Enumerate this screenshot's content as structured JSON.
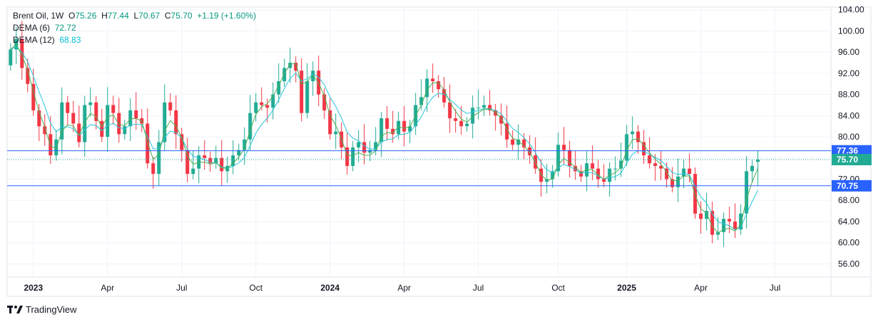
{
  "legend": {
    "symbol": "Brent Oil, 1W",
    "o_label": "O",
    "o": "75.26",
    "h_label": "H",
    "h": "77.44",
    "l_label": "L",
    "l": "70.67",
    "c_label": "C",
    "c": "75.70",
    "change": "+1.19 (+1.60%)",
    "dema6_label": "DEMA (6)",
    "dema6": "72.72",
    "dema12_label": "DEMA (12)",
    "dema12": "68.83"
  },
  "brand": {
    "name": "TradingView"
  },
  "colors": {
    "up": "#22ab94",
    "down": "#f23645",
    "dema6": "#4caf50",
    "dema12": "#26c6da",
    "hline": "#2962ff",
    "axisText": "#131722",
    "grid": "#f0f3fa"
  },
  "chart_data": {
    "type": "candlestick",
    "interval": "1W",
    "y_ticks": [
      "56.00",
      "60.00",
      "64.00",
      "68.00",
      "72.00",
      "76.00",
      "80.00",
      "84.00",
      "88.00",
      "92.00",
      "96.00",
      "100.00",
      "104.00"
    ],
    "y_range": [
      53.5,
      104.5
    ],
    "x_ticks": [
      {
        "label": "2023",
        "week": 4,
        "bold": true
      },
      {
        "label": "Apr",
        "week": 17,
        "bold": false
      },
      {
        "label": "Jul",
        "week": 30,
        "bold": false
      },
      {
        "label": "Oct",
        "week": 43,
        "bold": false
      },
      {
        "label": "2024",
        "week": 56,
        "bold": true
      },
      {
        "label": "Apr",
        "week": 69,
        "bold": false
      },
      {
        "label": "Jul",
        "week": 82,
        "bold": false
      },
      {
        "label": "Oct",
        "week": 96,
        "bold": false
      },
      {
        "label": "2025",
        "week": 108,
        "bold": true
      },
      {
        "label": "Apr",
        "week": 121,
        "bold": false
      },
      {
        "label": "Jul",
        "week": 134,
        "bold": false
      }
    ],
    "week_range": [
      -0.6,
      143.8
    ],
    "horizontal_lines": [
      {
        "value": 77.36,
        "label": "77.36"
      },
      {
        "value": 70.75,
        "label": "70.75"
      }
    ],
    "last_price": {
      "value": 75.7,
      "label": "75.70"
    },
    "cut_label": "72.00",
    "closes": [
      96.5,
      98.5,
      93.0,
      90.0,
      85.0,
      82.0,
      80.5,
      76.5,
      79.5,
      86.5,
      84.5,
      82.5,
      79.0,
      86.0,
      86.5,
      83.0,
      80.0,
      86.0,
      84.5,
      80.5,
      82.0,
      85.0,
      83.5,
      82.5,
      75.0,
      73.0,
      79.0,
      86.5,
      85.0,
      80.5,
      77.5,
      73.0,
      74.0,
      76.5,
      76.0,
      75.0,
      76.0,
      73.5,
      74.5,
      76.5,
      77.5,
      79.5,
      84.5,
      86.5,
      86.0,
      85.5,
      88.0,
      90.5,
      93.0,
      94.0,
      92.5,
      84.5,
      90.5,
      92.5,
      88.0,
      85.0,
      80.5,
      81.0,
      78.0,
      74.5,
      78.0,
      79.0,
      77.0,
      77.5,
      79.0,
      83.5,
      81.5,
      80.5,
      83.0,
      81.0,
      82.0,
      86.0,
      87.5,
      91.0,
      90.5,
      89.0,
      86.5,
      83.5,
      83.0,
      82.0,
      82.5,
      85.5,
      85.5,
      86.0,
      85.0,
      84.0,
      82.5,
      79.5,
      78.5,
      79.5,
      78.0,
      76.5,
      74.0,
      71.5,
      72.0,
      73.5,
      78.5,
      77.5,
      74.5,
      73.5,
      72.5,
      75.0,
      74.0,
      72.0,
      71.5,
      74.0,
      74.0,
      75.5,
      80.5,
      81.0,
      79.0,
      76.5,
      75.0,
      74.5,
      74.0,
      72.0,
      70.5,
      72.5,
      74.0,
      73.0,
      65.5,
      64.5,
      66.0,
      61.5,
      62.0,
      64.5,
      64.0,
      62.5,
      65.5,
      73.5,
      74.51,
      75.7
    ]
  }
}
